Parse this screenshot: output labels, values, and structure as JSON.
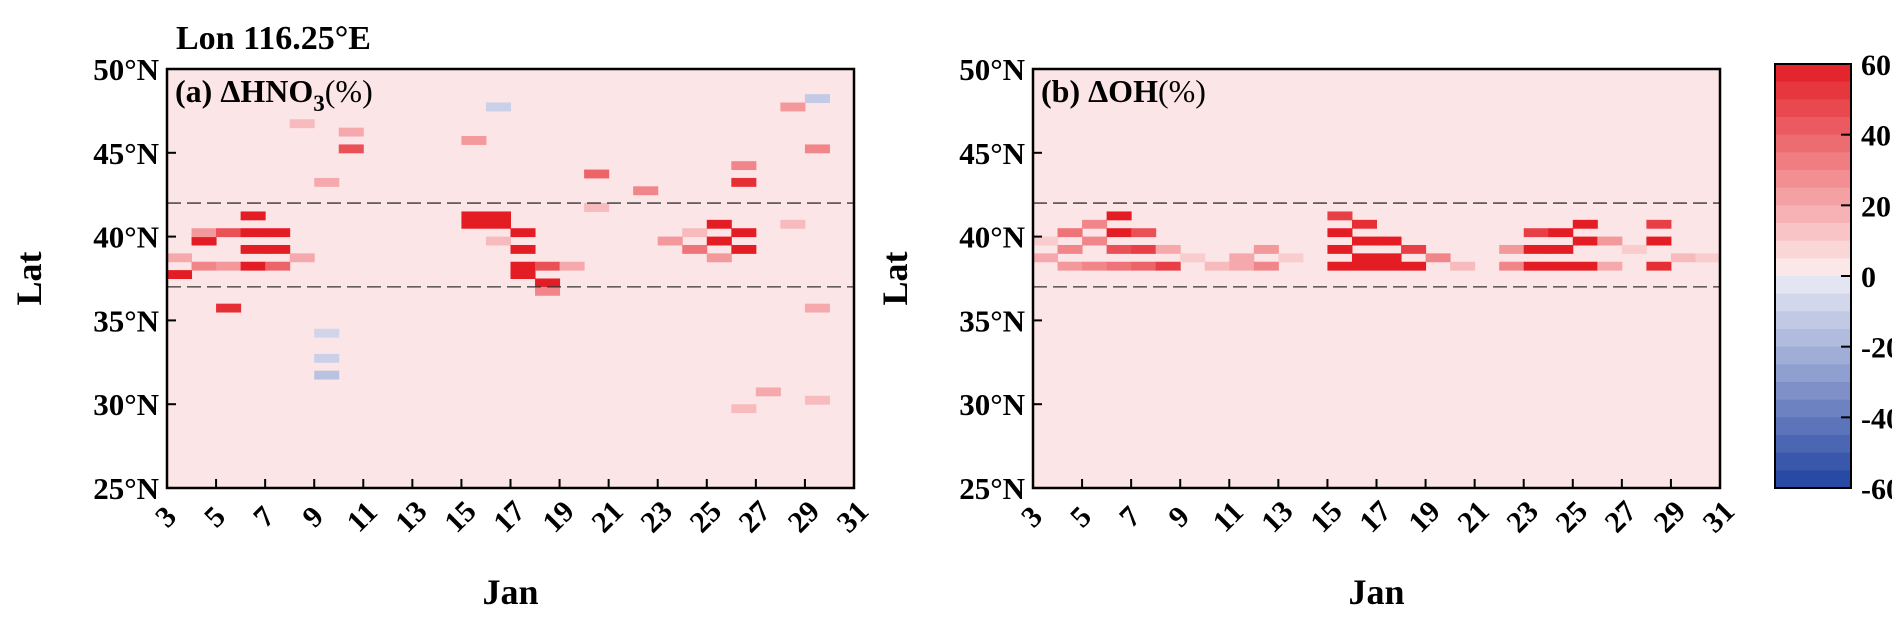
{
  "figure": {
    "super_title": "Lon 116.25°E",
    "colorbar_ticks": [
      "60",
      "40",
      "20",
      "0",
      "-20",
      "-40",
      "-60"
    ]
  },
  "chart_data": [
    {
      "type": "heatmap",
      "panel_label": "(a) ΔHNO",
      "panel_label_sub": "3",
      "panel_label_tail": "(%)",
      "xlabel": "Jan",
      "ylabel": "Lat",
      "x_ticks": [
        "3",
        "5",
        "7",
        "9",
        "11",
        "13",
        "15",
        "17",
        "19",
        "21",
        "23",
        "25",
        "27",
        "29",
        "31"
      ],
      "y_ticks": [
        "25°N",
        "30°N",
        "35°N",
        "40°N",
        "45°N",
        "50°N"
      ],
      "xlim": [
        3,
        31
      ],
      "ylim": [
        25,
        50
      ],
      "reference_lines_lat": [
        37,
        42
      ],
      "background_value": 3,
      "cells": [
        [
          3,
          38.75,
          20
        ],
        [
          3,
          37.75,
          60
        ],
        [
          4,
          39.75,
          60
        ],
        [
          4,
          40.25,
          25
        ],
        [
          4,
          38.25,
          30
        ],
        [
          5,
          40.25,
          45
        ],
        [
          5,
          38.25,
          25
        ],
        [
          5,
          35.75,
          55
        ],
        [
          6,
          41.25,
          60
        ],
        [
          6,
          40.25,
          60
        ],
        [
          6,
          39.25,
          60
        ],
        [
          6,
          38.25,
          60
        ],
        [
          7,
          40.25,
          60
        ],
        [
          7,
          39.25,
          60
        ],
        [
          7,
          38.25,
          40
        ],
        [
          8,
          38.75,
          20
        ],
        [
          8,
          46.75,
          15
        ],
        [
          9,
          43.25,
          20
        ],
        [
          9,
          31.75,
          -15
        ],
        [
          9,
          32.75,
          -10
        ],
        [
          9,
          34.25,
          -8
        ],
        [
          10,
          45.25,
          45
        ],
        [
          10,
          46.25,
          20
        ],
        [
          15,
          41.25,
          60
        ],
        [
          15,
          40.75,
          60
        ],
        [
          15,
          45.75,
          25
        ],
        [
          16,
          41.25,
          60
        ],
        [
          16,
          40.75,
          60
        ],
        [
          16,
          39.75,
          15
        ],
        [
          16,
          47.75,
          -10
        ],
        [
          17,
          40.25,
          60
        ],
        [
          17,
          39.25,
          60
        ],
        [
          17,
          38.25,
          60
        ],
        [
          17,
          37.75,
          60
        ],
        [
          18,
          37.25,
          60
        ],
        [
          18,
          38.25,
          45
        ],
        [
          18,
          36.75,
          30
        ],
        [
          19,
          38.25,
          20
        ],
        [
          20,
          43.75,
          40
        ],
        [
          20,
          41.75,
          15
        ],
        [
          22,
          42.75,
          30
        ],
        [
          23,
          39.75,
          25
        ],
        [
          24,
          39.25,
          35
        ],
        [
          24,
          40.25,
          15
        ],
        [
          25,
          40.75,
          60
        ],
        [
          25,
          39.75,
          60
        ],
        [
          25,
          38.75,
          25
        ],
        [
          26,
          40.25,
          60
        ],
        [
          26,
          39.25,
          60
        ],
        [
          26,
          43.25,
          55
        ],
        [
          26,
          44.25,
          30
        ],
        [
          26,
          29.75,
          15
        ],
        [
          27,
          30.75,
          20
        ],
        [
          28,
          47.75,
          25
        ],
        [
          28,
          40.75,
          15
        ],
        [
          29,
          45.25,
          30
        ],
        [
          29,
          35.75,
          20
        ],
        [
          29,
          30.25,
          15
        ],
        [
          29,
          48.25,
          -12
        ]
      ]
    },
    {
      "type": "heatmap",
      "panel_label": "(b) ΔOH",
      "panel_label_sub": "",
      "panel_label_tail": "(%)",
      "xlabel": "Jan",
      "ylabel": "Lat",
      "x_ticks": [
        "3",
        "5",
        "7",
        "9",
        "11",
        "13",
        "15",
        "17",
        "19",
        "21",
        "23",
        "25",
        "27",
        "29",
        "31"
      ],
      "y_ticks": [
        "25°N",
        "30°N",
        "35°N",
        "40°N",
        "45°N",
        "50°N"
      ],
      "xlim": [
        3,
        31
      ],
      "ylim": [
        25,
        50
      ],
      "reference_lines_lat": [
        37,
        42
      ],
      "background_value": 3,
      "cells": [
        [
          3,
          38.75,
          20
        ],
        [
          3,
          39.75,
          10
        ],
        [
          4,
          40.25,
          35
        ],
        [
          4,
          39.25,
          30
        ],
        [
          4,
          38.25,
          25
        ],
        [
          5,
          40.75,
          30
        ],
        [
          5,
          39.75,
          30
        ],
        [
          5,
          38.25,
          30
        ],
        [
          6,
          41.25,
          60
        ],
        [
          6,
          40.25,
          60
        ],
        [
          6,
          39.25,
          45
        ],
        [
          6,
          38.25,
          35
        ],
        [
          7,
          40.25,
          45
        ],
        [
          7,
          39.25,
          50
        ],
        [
          7,
          38.25,
          40
        ],
        [
          8,
          39.25,
          20
        ],
        [
          8,
          38.25,
          50
        ],
        [
          9,
          38.75,
          10
        ],
        [
          10,
          38.25,
          15
        ],
        [
          11,
          38.75,
          20
        ],
        [
          11,
          38.25,
          20
        ],
        [
          12,
          39.25,
          25
        ],
        [
          12,
          38.25,
          30
        ],
        [
          13,
          38.75,
          10
        ],
        [
          15,
          41.25,
          50
        ],
        [
          15,
          40.25,
          60
        ],
        [
          15,
          39.25,
          60
        ],
        [
          15,
          38.25,
          60
        ],
        [
          16,
          40.75,
          55
        ],
        [
          16,
          39.75,
          60
        ],
        [
          16,
          38.75,
          60
        ],
        [
          16,
          38.25,
          60
        ],
        [
          17,
          39.75,
          60
        ],
        [
          17,
          38.75,
          60
        ],
        [
          17,
          38.25,
          60
        ],
        [
          18,
          39.25,
          50
        ],
        [
          18,
          38.25,
          60
        ],
        [
          19,
          38.75,
          30
        ],
        [
          20,
          38.25,
          15
        ],
        [
          22,
          39.25,
          25
        ],
        [
          22,
          38.25,
          30
        ],
        [
          23,
          40.25,
          50
        ],
        [
          23,
          39.25,
          60
        ],
        [
          23,
          38.25,
          60
        ],
        [
          24,
          40.25,
          60
        ],
        [
          24,
          39.25,
          60
        ],
        [
          24,
          38.25,
          60
        ],
        [
          25,
          40.75,
          60
        ],
        [
          25,
          39.75,
          60
        ],
        [
          25,
          38.25,
          60
        ],
        [
          26,
          39.75,
          25
        ],
        [
          26,
          38.25,
          20
        ],
        [
          27,
          39.25,
          10
        ],
        [
          28,
          40.75,
          50
        ],
        [
          28,
          39.75,
          60
        ],
        [
          28,
          38.25,
          55
        ],
        [
          29,
          38.75,
          15
        ],
        [
          30,
          38.75,
          10
        ]
      ]
    }
  ]
}
